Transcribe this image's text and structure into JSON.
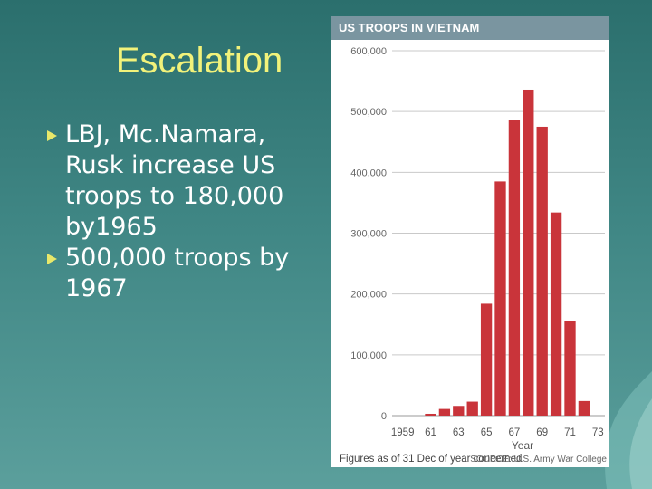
{
  "slide": {
    "title": "Escalation",
    "bullets": [
      "LBJ, Mc.Namara, Rusk increase US troops to 180,000 by1965",
      "500,000 troops by 1967"
    ]
  },
  "chart_data": {
    "type": "bar",
    "title": "US TROOPS IN VIETNAM",
    "xlabel": "Year",
    "ylabel": "",
    "ylim": [
      0,
      600000
    ],
    "y_ticks": [
      0,
      100000,
      200000,
      300000,
      400000,
      500000,
      600000
    ],
    "y_tick_labels": [
      "0",
      "100,000",
      "200,000",
      "300,000",
      "400,000",
      "500,000",
      "600,000"
    ],
    "categories": [
      "1959",
      "1960",
      "1961",
      "1962",
      "1963",
      "1964",
      "1965",
      "1966",
      "1967",
      "1968",
      "1969",
      "1970",
      "1971",
      "1972",
      "1973"
    ],
    "x_tick_labels": [
      "1959",
      "",
      "61",
      "",
      "63",
      "",
      "65",
      "",
      "67",
      "",
      "69",
      "",
      "71",
      "",
      "73"
    ],
    "values": [
      0,
      0,
      3000,
      11000,
      16000,
      23000,
      184000,
      385000,
      486000,
      536000,
      475000,
      334000,
      156000,
      24000,
      0
    ],
    "grid": true,
    "bar_color": "#c9343a",
    "note": "Figures as of 31 Dec of year concerned",
    "source": "SOURCE: U.S. Army War College"
  },
  "colors": {
    "title": "#f2f27a",
    "header_bg": "#7a95a0"
  }
}
